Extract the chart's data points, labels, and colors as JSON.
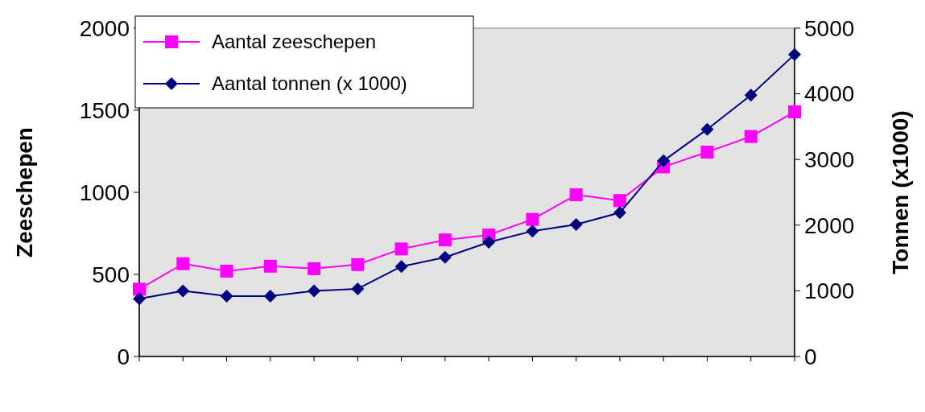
{
  "chart_data": {
    "type": "line",
    "categories": [
      null,
      null,
      null,
      null,
      null,
      null,
      null,
      null,
      null,
      null,
      null,
      null,
      null,
      null,
      null,
      null
    ],
    "series": [
      {
        "name": "Aantal zeeschepen",
        "color": "#ff00ff",
        "marker": "square",
        "values": [
          410,
          565,
          520,
          550,
          535,
          560,
          655,
          710,
          740,
          835,
          985,
          950,
          1155,
          1245,
          1340,
          1490
        ]
      },
      {
        "name": "Aantal tonnen (x 1000)",
        "color": "#000080",
        "marker": "diamond",
        "axis": "y2",
        "values": [
          880,
          1000,
          920,
          920,
          1000,
          1030,
          1370,
          1510,
          1740,
          1910,
          2010,
          2190,
          2980,
          3460,
          3980,
          4600
        ]
      }
    ],
    "ylabel": "Zeeschepen",
    "y2label": "Tonnen (x1000)",
    "ylim": [
      0,
      2000
    ],
    "yticks": [
      0,
      500,
      1000,
      1500,
      2000
    ],
    "y2lim": [
      0,
      5000
    ],
    "y2ticks": [
      0,
      1000,
      2000,
      3000,
      4000,
      5000
    ],
    "legend": "top left",
    "grid": false
  }
}
